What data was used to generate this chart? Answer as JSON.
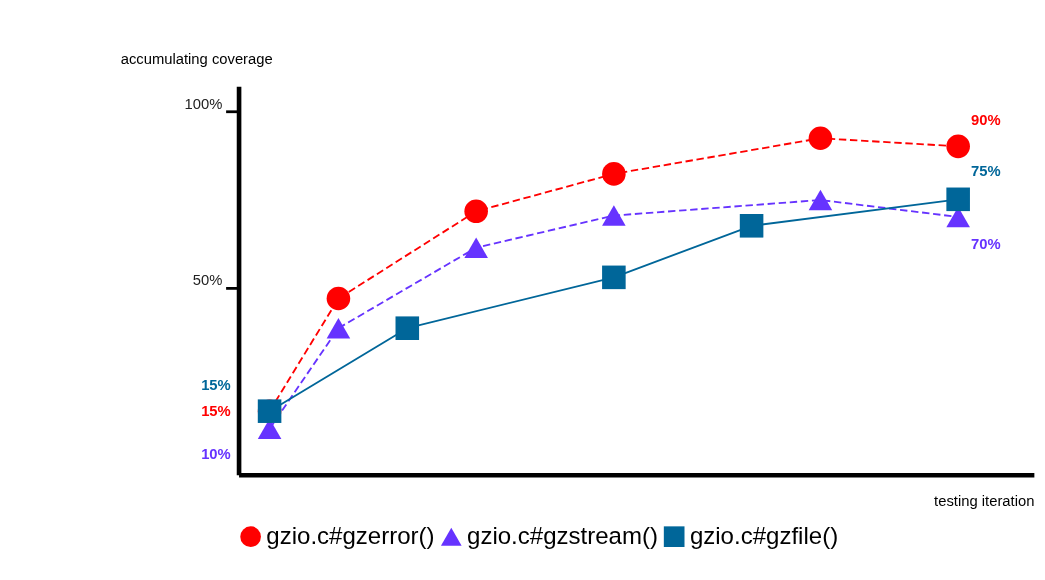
{
  "chart_data": {
    "type": "line",
    "xlabel": "testing iteration",
    "ylabel": "accumulating coverage",
    "categories": [
      null,
      null,
      null,
      null,
      null,
      null,
      null,
      null,
      null,
      null,
      null
    ],
    "ylim": [
      -3,
      107
    ],
    "yticks": [
      {
        "value": 50,
        "label": "50%"
      },
      {
        "value": 100,
        "label": "100%"
      }
    ],
    "tick_labels": "y",
    "grid": false,
    "legend": "bottom",
    "series": [
      {
        "name": "gzio.c#gzerror()",
        "color": "#ff0000",
        "marker": "circle",
        "line_style": "dashed",
        "values": [
          15,
          46.9,
          null,
          71.6,
          null,
          82.2,
          null,
          null,
          92.3,
          null,
          90
        ],
        "value_labels": [
          "15%",
          null,
          null,
          null,
          null,
          null,
          null,
          null,
          null,
          null,
          "90%"
        ]
      },
      {
        "name": "gzio.c#gzstream()",
        "color": "#6633ff",
        "marker": "triangle",
        "line_style": "dashed",
        "values": [
          10,
          38.5,
          null,
          61.3,
          null,
          70.4,
          null,
          null,
          74.8,
          null,
          70
        ],
        "value_labels": [
          "10%",
          null,
          null,
          null,
          null,
          null,
          null,
          null,
          null,
          null,
          "70%"
        ]
      },
      {
        "name": "gzio.c#gzfile()",
        "color": "#006699",
        "marker": "square",
        "line_style": "solid",
        "values": [
          15,
          null,
          38.5,
          null,
          null,
          52.9,
          null,
          67.5,
          null,
          null,
          75
        ],
        "value_labels": [
          "15%",
          null,
          null,
          null,
          null,
          null,
          null,
          null,
          null,
          null,
          "75%"
        ]
      }
    ]
  }
}
